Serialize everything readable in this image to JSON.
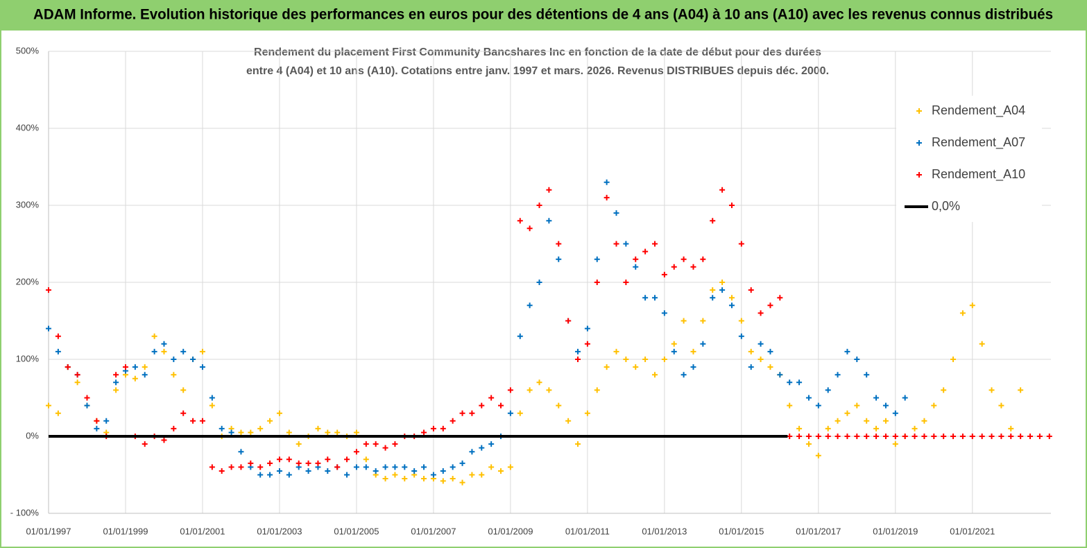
{
  "header": {
    "title": "ADAM Informe. Evolution historique des performances en euros pour des détentions de 4 ans (A04) à 10 ans (A10) avec les revenus connus distribués"
  },
  "chart_data": {
    "type": "scatter",
    "title_lines": [
      "Rendement du placement First Community Bancshares Inc en fonction de la date de début pour des durées",
      "entre 4 (A04) et 10 ans (A10).  Cotations entre janv. 1997 et mars. 2026. Revenus DISTRIBUES depuis déc. 2000."
    ],
    "xlim": [
      1997,
      2023.04
    ],
    "xticks": [
      {
        "value": 1997,
        "label": "01/01/1997"
      },
      {
        "value": 1999,
        "label": "01/01/1999"
      },
      {
        "value": 2001,
        "label": "01/01/2001"
      },
      {
        "value": 2003,
        "label": "01/01/2003"
      },
      {
        "value": 2005,
        "label": "01/01/2005"
      },
      {
        "value": 2007,
        "label": "01/01/2007"
      },
      {
        "value": 2009,
        "label": "01/01/2009"
      },
      {
        "value": 2011,
        "label": "01/01/2011"
      },
      {
        "value": 2013,
        "label": "01/01/2013"
      },
      {
        "value": 2015,
        "label": "01/01/2015"
      },
      {
        "value": 2017,
        "label": "01/01/2017"
      },
      {
        "value": 2019,
        "label": "01/01/2019"
      },
      {
        "value": 2021,
        "label": "01/01/2021"
      }
    ],
    "ylim": [
      -100,
      500
    ],
    "yticks": [
      {
        "value": -100,
        "label": "- 100%"
      },
      {
        "value": 0,
        "label": "0%"
      },
      {
        "value": 100,
        "label": "100%"
      },
      {
        "value": 200,
        "label": "200%"
      },
      {
        "value": 300,
        "label": "300%"
      },
      {
        "value": 400,
        "label": "400%"
      },
      {
        "value": 500,
        "label": "500%"
      }
    ],
    "grid": true,
    "legend": "upper right",
    "series": [
      {
        "name": "Rendement_A04",
        "color": "#ffc000",
        "marker": "plus",
        "x": [
          1997,
          1997.25,
          1997.5,
          1997.75,
          1998,
          1998.25,
          1998.5,
          1998.75,
          1999,
          1999.25,
          1999.5,
          1999.75,
          2000,
          2000.25,
          2000.5,
          2000.75,
          2001,
          2001.25,
          2001.5,
          2001.75,
          2002,
          2002.25,
          2002.5,
          2002.75,
          2003,
          2003.25,
          2003.5,
          2003.75,
          2004,
          2004.25,
          2004.5,
          2004.75,
          2005,
          2005.25,
          2005.5,
          2005.75,
          2006,
          2006.25,
          2006.5,
          2006.75,
          2007,
          2007.25,
          2007.5,
          2007.75,
          2008,
          2008.25,
          2008.5,
          2008.75,
          2009,
          2009.25,
          2009.5,
          2009.75,
          2010,
          2010.25,
          2010.5,
          2010.75,
          2011,
          2011.25,
          2011.5,
          2011.75,
          2012,
          2012.25,
          2012.5,
          2012.75,
          2013,
          2013.25,
          2013.5,
          2013.75,
          2014,
          2014.25,
          2014.5,
          2014.75,
          2015,
          2015.25,
          2015.5,
          2015.75,
          2016,
          2016.25,
          2016.5,
          2016.75,
          2017,
          2017.25,
          2017.5,
          2017.75,
          2018,
          2018.25,
          2018.5,
          2018.75,
          2019,
          2019.25,
          2019.5,
          2019.75,
          2020,
          2020.25,
          2020.5,
          2020.75,
          2021,
          2021.25,
          2021.5,
          2021.75,
          2022,
          2022.25
        ],
        "values": [
          40,
          30,
          90,
          70,
          40,
          20,
          5,
          60,
          80,
          75,
          90,
          130,
          110,
          80,
          60,
          100,
          110,
          40,
          0,
          10,
          5,
          5,
          10,
          20,
          30,
          5,
          -10,
          0,
          10,
          5,
          5,
          0,
          5,
          -30,
          -50,
          -55,
          -50,
          -55,
          -50,
          -55,
          -55,
          -58,
          -55,
          -60,
          -50,
          -50,
          -40,
          -45,
          -40,
          30,
          60,
          70,
          60,
          40,
          20,
          -10,
          30,
          60,
          90,
          110,
          100,
          90,
          100,
          80,
          100,
          120,
          150,
          110,
          150,
          190,
          200,
          180,
          150,
          110,
          100,
          90,
          80,
          40,
          10,
          -10,
          -25,
          10,
          20,
          30,
          40,
          20,
          10,
          20,
          -10,
          0,
          10,
          20,
          40,
          60,
          100,
          160,
          170,
          120,
          60,
          40,
          10,
          60
        ]
      },
      {
        "name": "Rendement_A07",
        "color": "#0070c0",
        "marker": "plus",
        "x": [
          1997,
          1997.25,
          1997.5,
          1997.75,
          1998,
          1998.25,
          1998.5,
          1998.75,
          1999,
          1999.25,
          1999.5,
          1999.75,
          2000,
          2000.25,
          2000.5,
          2000.75,
          2001,
          2001.25,
          2001.5,
          2001.75,
          2002,
          2002.25,
          2002.5,
          2002.75,
          2003,
          2003.25,
          2003.5,
          2003.75,
          2004,
          2004.25,
          2004.5,
          2004.75,
          2005,
          2005.25,
          2005.5,
          2005.75,
          2006,
          2006.25,
          2006.5,
          2006.75,
          2007,
          2007.25,
          2007.5,
          2007.75,
          2008,
          2008.25,
          2008.5,
          2008.75,
          2009,
          2009.25,
          2009.5,
          2009.75,
          2010,
          2010.25,
          2010.5,
          2010.75,
          2011,
          2011.25,
          2011.5,
          2011.75,
          2012,
          2012.25,
          2012.5,
          2012.75,
          2013,
          2013.25,
          2013.5,
          2013.75,
          2014,
          2014.25,
          2014.5,
          2014.75,
          2015,
          2015.25,
          2015.5,
          2015.75,
          2016,
          2016.25,
          2016.5,
          2016.75,
          2017,
          2017.25,
          2017.5,
          2017.75,
          2018,
          2018.25,
          2018.5,
          2018.75,
          2019,
          2019.25
        ],
        "values": [
          140,
          110,
          90,
          80,
          40,
          10,
          20,
          70,
          85,
          90,
          80,
          110,
          120,
          100,
          110,
          100,
          90,
          50,
          10,
          5,
          -20,
          -40,
          -50,
          -50,
          -45,
          -50,
          -40,
          -45,
          -40,
          -45,
          -40,
          -50,
          -40,
          -40,
          -45,
          -40,
          -40,
          -40,
          -45,
          -40,
          -50,
          -45,
          -40,
          -35,
          -20,
          -15,
          -10,
          0,
          30,
          130,
          170,
          200,
          280,
          230,
          150,
          110,
          140,
          230,
          330,
          290,
          250,
          220,
          180,
          180,
          160,
          110,
          80,
          90,
          120,
          180,
          190,
          170,
          130,
          90,
          120,
          110,
          80,
          70,
          70,
          50,
          40,
          60,
          80,
          110,
          100,
          80,
          50,
          40,
          30,
          50
        ]
      },
      {
        "name": "Rendement_A10",
        "color": "#ff0000",
        "marker": "plus",
        "x": [
          1997,
          1997.25,
          1997.5,
          1997.75,
          1998,
          1998.25,
          1998.5,
          1998.75,
          1999,
          1999.25,
          1999.5,
          1999.75,
          2000,
          2000.25,
          2000.5,
          2000.75,
          2001,
          2001.25,
          2001.5,
          2001.75,
          2002,
          2002.25,
          2002.5,
          2002.75,
          2003,
          2003.25,
          2003.5,
          2003.75,
          2004,
          2004.25,
          2004.5,
          2004.75,
          2005,
          2005.25,
          2005.5,
          2005.75,
          2006,
          2006.25,
          2006.5,
          2006.75,
          2007,
          2007.25,
          2007.5,
          2007.75,
          2008,
          2008.25,
          2008.5,
          2008.75,
          2009,
          2009.25,
          2009.5,
          2009.75,
          2010,
          2010.25,
          2010.5,
          2010.75,
          2011,
          2011.25,
          2011.5,
          2011.75,
          2012,
          2012.25,
          2012.5,
          2012.75,
          2013,
          2013.25,
          2013.5,
          2013.75,
          2014,
          2014.25,
          2014.5,
          2014.75,
          2015,
          2015.25,
          2015.5,
          2015.75,
          2016,
          2016.25,
          2016.5,
          2016.75,
          2017,
          2017.25,
          2017.5,
          2017.75,
          2018,
          2018.25,
          2018.5,
          2018.75,
          2019,
          2019.25,
          2019.5,
          2019.75,
          2020,
          2020.25,
          2020.5,
          2020.75,
          2021,
          2021.25,
          2021.5,
          2021.75,
          2022,
          2022.25,
          2022.5,
          2022.75,
          2023
        ],
        "values": [
          190,
          130,
          90,
          80,
          50,
          20,
          0,
          80,
          90,
          0,
          -10,
          0,
          -5,
          10,
          30,
          20,
          20,
          -40,
          -45,
          -40,
          -40,
          -35,
          -40,
          -35,
          -30,
          -30,
          -35,
          -35,
          -35,
          -30,
          -40,
          -30,
          -20,
          -10,
          -10,
          -15,
          -10,
          0,
          0,
          5,
          10,
          10,
          20,
          30,
          30,
          40,
          50,
          40,
          60,
          280,
          270,
          300,
          320,
          250,
          150,
          100,
          120,
          200,
          310,
          250,
          200,
          230,
          240,
          250,
          210,
          220,
          230,
          220,
          230,
          280,
          320,
          300,
          250,
          190,
          160,
          170,
          180,
          0,
          0,
          0,
          0,
          0,
          0,
          0,
          0,
          0,
          0,
          0,
          0,
          0,
          0,
          0,
          0,
          0,
          0,
          0,
          0,
          0,
          0,
          0,
          0,
          0,
          0,
          0,
          0
        ]
      },
      {
        "name": "0,0%",
        "color": "#000000",
        "marker": "line",
        "x": [
          1997,
          2016.2
        ],
        "values": [
          0,
          0
        ]
      }
    ]
  }
}
